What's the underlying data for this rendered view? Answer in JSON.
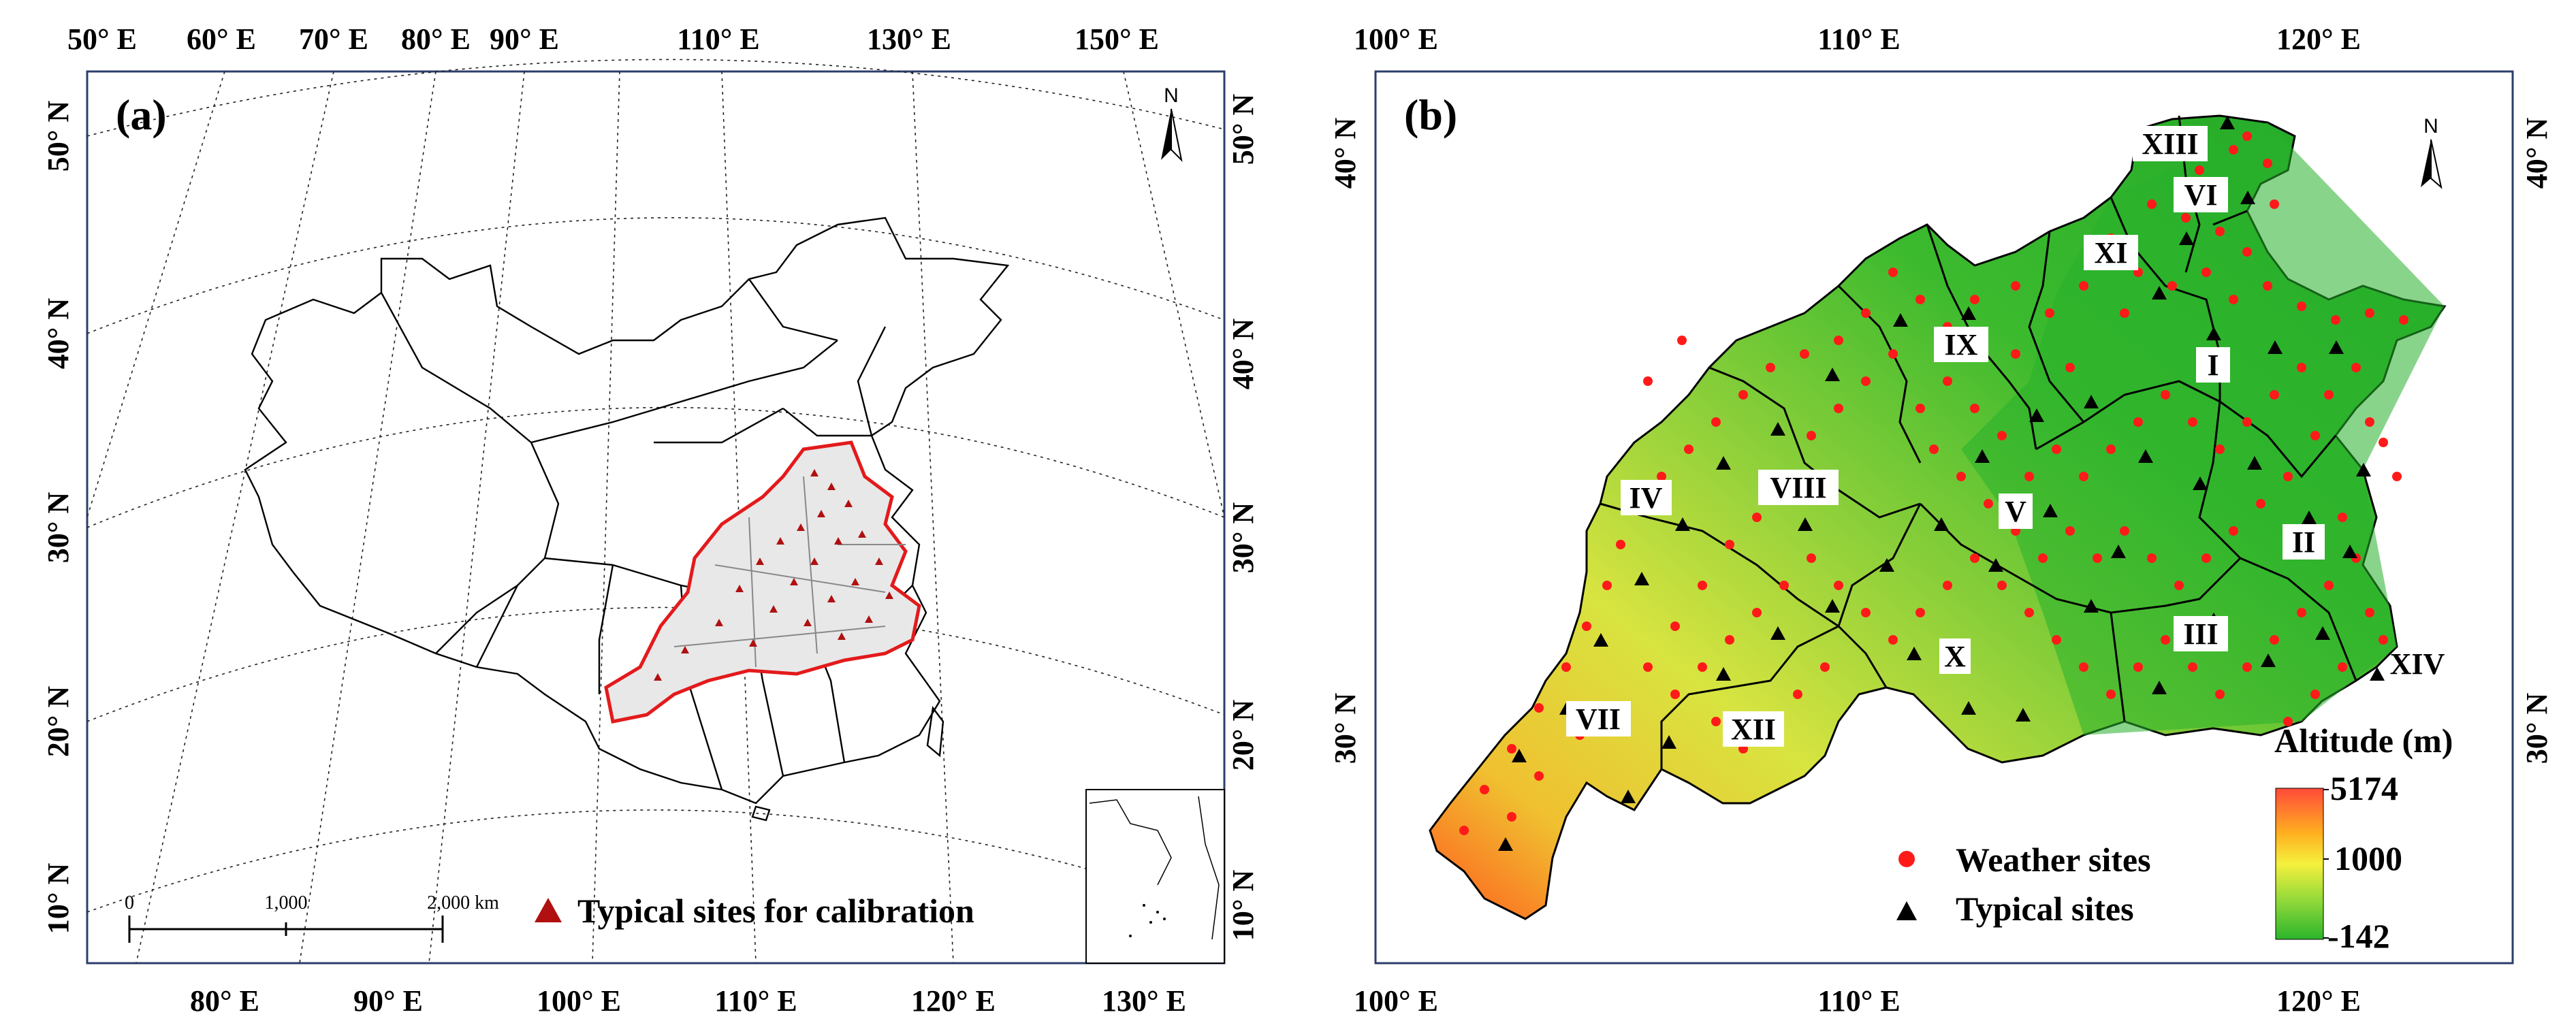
{
  "panel_a": {
    "label": "(a)",
    "top_ticks": [
      "50° E",
      "60° E",
      "70° E",
      "80° E",
      "90° E",
      "110° E",
      "130° E",
      "150° E"
    ],
    "bottom_ticks": [
      "80° E",
      "90° E",
      "100° E",
      "110° E",
      "120° E",
      "130° E"
    ],
    "left_ticks": [
      "50° N",
      "40° N",
      "30° N",
      "20° N",
      "10° N"
    ],
    "right_ticks": [
      "50° N",
      "40° N",
      "30° N",
      "20° N",
      "10° N"
    ],
    "scale_labels": [
      "0",
      "1,000",
      "2,000 km"
    ],
    "legend_label": "Typical sites for calibration",
    "north": "N"
  },
  "panel_b": {
    "label": "(b)",
    "top_ticks": [
      "100° E",
      "110° E",
      "120° E"
    ],
    "bottom_ticks": [
      "100° E",
      "110° E",
      "120° E"
    ],
    "left_ticks": [
      "40° N",
      "30° N"
    ],
    "right_ticks": [
      "40° N",
      "30° N"
    ],
    "regions": [
      "XIII",
      "VI",
      "XI",
      "IX",
      "I",
      "IV",
      "VIII",
      "V",
      "II",
      "III",
      "X",
      "XIV",
      "VII",
      "XII"
    ],
    "legend": {
      "weather": "Weather sites",
      "typical": "Typical sites"
    },
    "altitude": {
      "title": "Altitude (m)",
      "max": "5174",
      "mid": "1000",
      "min": "-142"
    },
    "north": "N"
  },
  "colors": {
    "frame": "#2c3e6b",
    "study_area_outline": "#e31a1c",
    "weather_site": "#ff1a1a",
    "typical_site": "#000000",
    "triangle_a": "#b01010"
  }
}
